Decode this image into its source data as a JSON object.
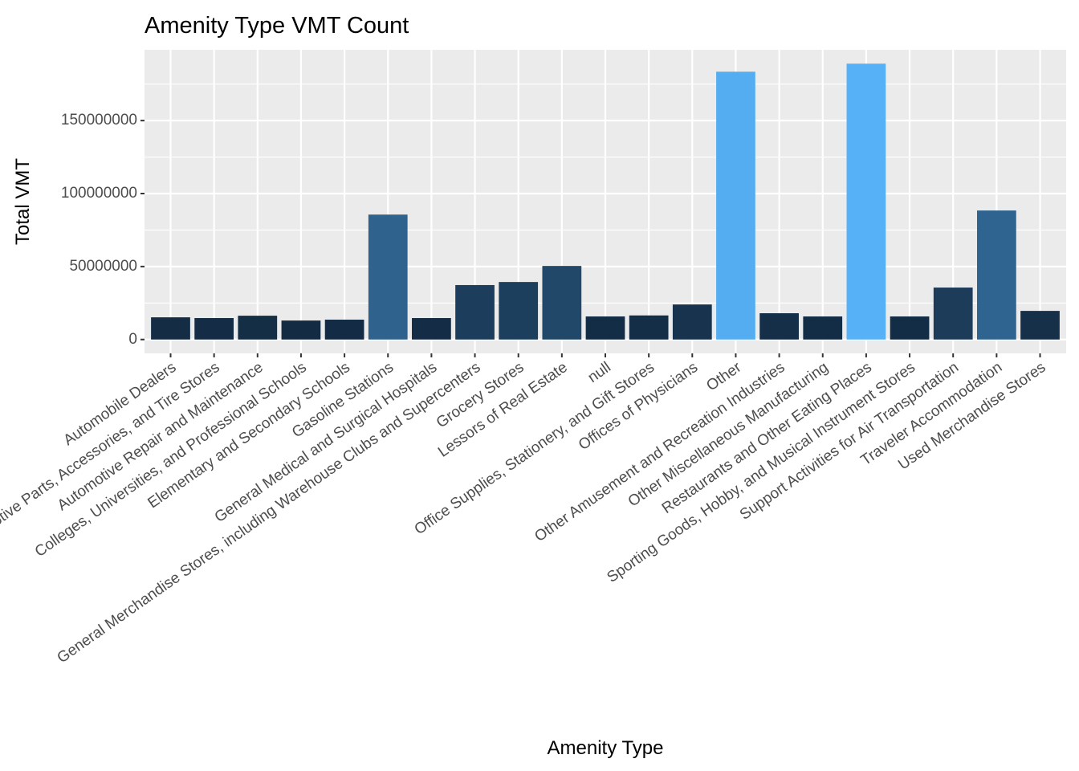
{
  "chart_data": {
    "type": "bar",
    "title": "Amenity Type VMT Count",
    "xlabel": "Amenity Type",
    "ylabel": "Total VMT",
    "ylim": [
      -9500000,
      198500000
    ],
    "yticks": [
      0,
      50000000,
      100000000,
      150000000
    ],
    "ytick_labels": [
      "0",
      "50000000",
      "100000000",
      "150000000"
    ],
    "grid": true,
    "legend": "none",
    "fill_scale": {
      "low": "#132B43",
      "high": "#56B1F7"
    },
    "panel_background": "#EBEBEB",
    "categories": [
      "Automobile Dealers",
      "Automotive Parts, Accessories, and Tire Stores",
      "Automotive Repair and Maintenance",
      "Colleges, Universities, and Professional Schools",
      "Elementary and Secondary Schools",
      "Gasoline Stations",
      "General Medical and Surgical Hospitals",
      "General Merchandise Stores, including Warehouse Clubs and Supercenters",
      "Grocery Stores",
      "Lessors of Real Estate",
      "null",
      "Office Supplies, Stationery, and Gift Stores",
      "Offices of Physicians",
      "Other",
      "Other Amusement and Recreation Industries",
      "Other Miscellaneous Manufacturing",
      "Restaurants and Other Eating Places",
      "Sporting Goods, Hobby, and Musical Instrument Stores",
      "Support Activities for Air Transportation",
      "Traveler Accommodation",
      "Used Merchandise Stores"
    ],
    "values": [
      15200000,
      14700000,
      16300000,
      13000000,
      13600000,
      85600000,
      14700000,
      37300000,
      39400000,
      50400000,
      15800000,
      16500000,
      24000000,
      183500000,
      18000000,
      15800000,
      189000000,
      15800000,
      35600000,
      88400000,
      19600000
    ]
  }
}
